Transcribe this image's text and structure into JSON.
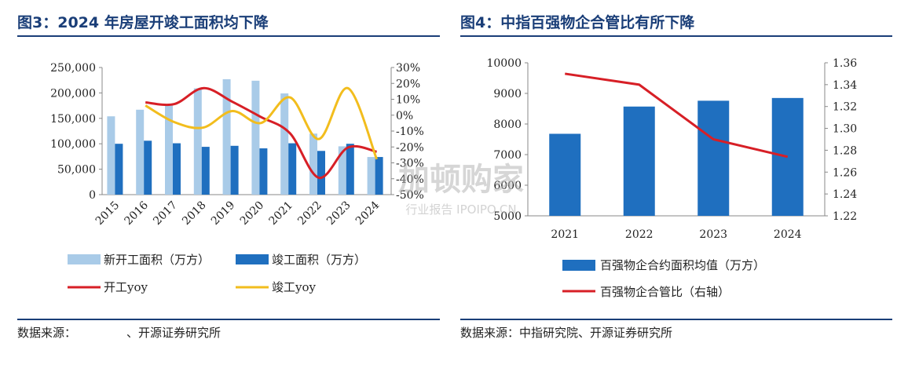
{
  "left": {
    "title": "图3：2024 年房屋开竣工面积均下降",
    "source_prefix": "数据来源：",
    "source_rest": "、开源证券研究所",
    "chart_data": {
      "type": "bar+line",
      "categories": [
        "2015",
        "2016",
        "2017",
        "2018",
        "2019",
        "2020",
        "2021",
        "2022",
        "2023",
        "2024"
      ],
      "series": [
        {
          "name": "新开工面积（万方）",
          "type": "bar",
          "axis": "left",
          "color": "#a9cbe8",
          "values": [
            154000,
            167000,
            178000,
            209000,
            227000,
            224000,
            199000,
            120000,
            95000,
            74000
          ]
        },
        {
          "name": "竣工面积（万方）",
          "type": "bar",
          "axis": "left",
          "color": "#1f6fbf",
          "values": [
            100000,
            106000,
            101000,
            94000,
            96000,
            91000,
            101000,
            86000,
            100000,
            74000
          ]
        },
        {
          "name": "开工yoy",
          "type": "line",
          "axis": "right",
          "color": "#d71f26",
          "values": [
            null,
            8,
            7,
            17,
            8.5,
            -1.2,
            -11.4,
            -39.4,
            -20.4,
            -23
          ]
        },
        {
          "name": "竣工yoy",
          "type": "line",
          "axis": "right",
          "color": "#f2bd1d",
          "values": [
            null,
            6.1,
            -4.4,
            -7.8,
            2.6,
            -4.9,
            11.2,
            -15,
            17,
            -27.7
          ]
        }
      ],
      "yleft": {
        "min": 0,
        "max": 250000,
        "ticks": [
          "0",
          "50,000",
          "100,000",
          "150,000",
          "200,000",
          "250,000"
        ]
      },
      "yright": {
        "min": -50,
        "max": 30,
        "ticks": [
          "-50%",
          "-40%",
          "-30%",
          "-20%",
          "-10%",
          "0%",
          "10%",
          "20%",
          "30%"
        ]
      },
      "legend_placement": "bottom"
    }
  },
  "right": {
    "title": "图4：中指百强物企合管比有所下降",
    "source": "数据来源：中指研究院、开源证券研究所",
    "chart_data": {
      "type": "bar+line",
      "categories": [
        "2021",
        "2022",
        "2023",
        "2024"
      ],
      "series": [
        {
          "name": "百强物企合约面积均值（万方）",
          "type": "bar",
          "axis": "left",
          "color": "#1f6fbf",
          "values": [
            7680,
            8570,
            8760,
            8850
          ]
        },
        {
          "name": "百强物企合管比（右轴）",
          "type": "line",
          "axis": "right",
          "color": "#d71f26",
          "values": [
            1.35,
            1.34,
            1.29,
            1.274
          ]
        }
      ],
      "yleft": {
        "min": 5000,
        "max": 10000,
        "ticks": [
          "5000",
          "6000",
          "7000",
          "8000",
          "9000",
          "10000"
        ]
      },
      "yright": {
        "min": 1.22,
        "max": 1.36,
        "ticks": [
          "1.22",
          "1.24",
          "1.26",
          "1.28",
          "1.30",
          "1.32",
          "1.34",
          "1.36"
        ]
      },
      "legend_placement": "bottom"
    }
  },
  "watermark": {
    "text": "加顿购家",
    "subtext": "行业报告 IPOIPO.CN"
  }
}
